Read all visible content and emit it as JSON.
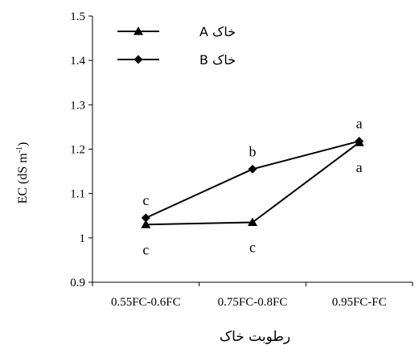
{
  "chart_data": {
    "type": "line",
    "categories": [
      "0.55FC-0.6FC",
      "0.75FC-0.8FC",
      "0.95FC-FC"
    ],
    "series": [
      {
        "name": "خاک A",
        "marker": "triangle",
        "values": [
          1.03,
          1.035,
          1.215
        ],
        "letters": [
          "c",
          "c",
          "a"
        ],
        "letter_position": "below"
      },
      {
        "name": "خاک B",
        "marker": "diamond",
        "values": [
          1.045,
          1.155,
          1.218
        ],
        "letters": [
          "c",
          "b",
          "a"
        ],
        "letter_position": "above"
      }
    ],
    "ylim": [
      0.9,
      1.5
    ],
    "yticks": [
      "0.9",
      "1",
      "1.1",
      "1.2",
      "1.3",
      "1.4",
      "1.5"
    ],
    "ylabel_main": "EC (dS m",
    "ylabel_sup": "-1",
    "ylabel_close": ")",
    "xlabel": "رطوبت خاک",
    "grid": false,
    "legend_position": "top-left",
    "line_color": "#000000"
  }
}
